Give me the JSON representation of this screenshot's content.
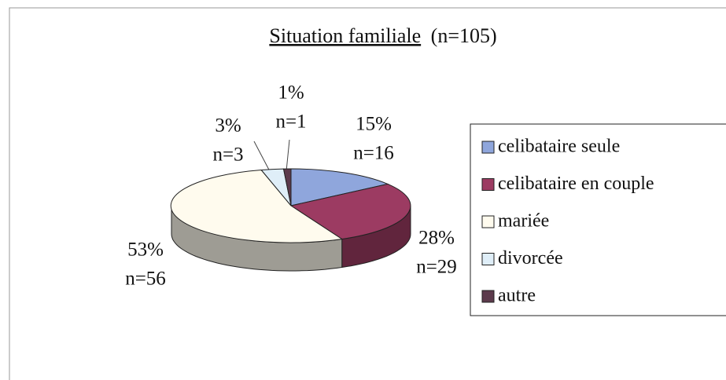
{
  "chart_data": {
    "type": "pie",
    "title": "Situation familiale",
    "title_note": "(n=105)",
    "categories": [
      "celibataire seule",
      "celibataire en couple",
      "mariée",
      "divorcée",
      "autre"
    ],
    "values": [
      15,
      28,
      53,
      3,
      1
    ],
    "value_labels": [
      "15%",
      "28%",
      "53%",
      "3%",
      "1%"
    ],
    "count_labels": [
      "n=16",
      "n=29",
      "n=56",
      "n=3",
      "n=1"
    ],
    "colors": [
      "#8fa6dc",
      "#9c3b62",
      "#fffbee",
      "#dfeef8",
      "#5c3a4c"
    ],
    "legend": "right"
  }
}
